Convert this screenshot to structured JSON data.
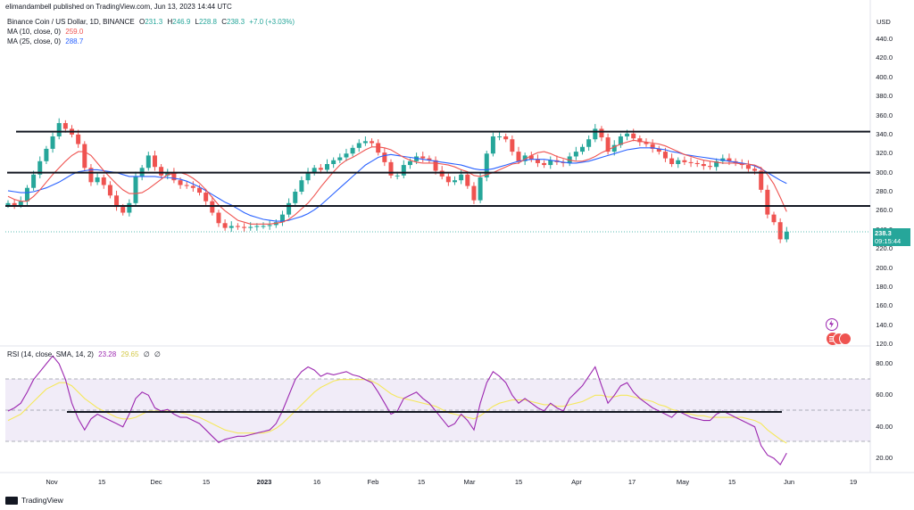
{
  "header": {
    "published_by": "elimandambell published on TradingView.com, Jun 13, 2023 14:44 UTC"
  },
  "main_legend": {
    "symbol": "Binance Coin / US Dollar, 1D, BINANCE",
    "o_label": "O",
    "o": "231.3",
    "h_label": "H",
    "h": "246.9",
    "l_label": "L",
    "l": "228.8",
    "c_label": "C",
    "c": "238.3",
    "change": "+7.0 (+3.03%)",
    "ma10_label": "MA (10, close, 0)",
    "ma10_value": "259.0",
    "ma25_label": "MA (25, close, 0)",
    "ma25_value": "288.7"
  },
  "rsi_legend": {
    "label": "RSI (14, close, SMA, 14, 2)",
    "rsi_value": "23.28",
    "sma_value": "29.65",
    "extra1": "∅",
    "extra2": "∅"
  },
  "price_axis": {
    "currency": "USD",
    "ticks": [
      "440.0",
      "420.0",
      "400.0",
      "380.0",
      "360.0",
      "340.0",
      "320.0",
      "300.0",
      "280.0",
      "260.0",
      "240.0",
      "220.0",
      "200.0",
      "180.0",
      "160.0",
      "140.0",
      "120.0"
    ],
    "last_price": "238.3",
    "countdown": "09:15:44"
  },
  "rsi_axis": {
    "ticks": [
      "80.00",
      "60.00",
      "40.00",
      "20.00"
    ]
  },
  "time_axis": {
    "labels": [
      "Nov",
      "15",
      "Dec",
      "15",
      "2023",
      "16",
      "Feb",
      "15",
      "Mar",
      "15",
      "Apr",
      "17",
      "May",
      "15",
      "Jun",
      "19"
    ]
  },
  "footer": {
    "brand": "TradingView"
  },
  "colors": {
    "up": "#26a69a",
    "down": "#ef5350",
    "ma10": "#ef5350",
    "ma25": "#2962ff",
    "rsi": "#9c27b0",
    "rsi_sma": "#f5e85c",
    "band": "#ede7f6",
    "hline": "#131722"
  },
  "chart_data": {
    "type": "candlestick",
    "y_axis_range": [
      120,
      450
    ],
    "support_resistance": [
      343,
      300,
      265
    ],
    "closes": [
      268,
      266,
      270,
      284,
      298,
      312,
      325,
      338,
      352,
      346,
      340,
      330,
      305,
      290,
      295,
      287,
      276,
      264,
      258,
      268,
      296,
      305,
      318,
      306,
      297,
      300,
      292,
      287,
      286,
      284,
      279,
      270,
      258,
      247,
      242,
      244,
      243,
      242,
      243,
      244,
      244,
      245,
      248,
      256,
      268,
      280,
      292,
      300,
      305,
      303,
      309,
      313,
      316,
      320,
      326,
      331,
      333,
      331,
      321,
      311,
      297,
      297,
      308,
      312,
      317,
      315,
      313,
      302,
      296,
      290,
      292,
      298,
      286,
      271,
      295,
      320,
      338,
      338,
      335,
      322,
      312,
      318,
      314,
      310,
      308,
      313,
      311,
      310,
      317,
      322,
      327,
      335,
      346,
      337,
      322,
      329,
      338,
      341,
      336,
      332,
      330,
      325,
      322,
      315,
      309,
      313,
      311,
      310,
      309,
      307,
      306,
      312,
      315,
      312,
      310,
      308,
      304,
      302,
      282,
      256,
      248,
      230,
      238
    ],
    "ma10": [
      275,
      272,
      270,
      270,
      275,
      282,
      290,
      298,
      305,
      312,
      318,
      322,
      322,
      318,
      310,
      302,
      295,
      288,
      282,
      278,
      278,
      279,
      283,
      288,
      293,
      298,
      299,
      300,
      298,
      294,
      289,
      282,
      274,
      266,
      260,
      255,
      250,
      248,
      246,
      246,
      246,
      246,
      247,
      248,
      251,
      256,
      262,
      268,
      276,
      285,
      293,
      301,
      308,
      313,
      316,
      320,
      324,
      327,
      327,
      326,
      324,
      320,
      316,
      313,
      311,
      310,
      310,
      310,
      309,
      308,
      306,
      303,
      301,
      297,
      296,
      298,
      300,
      303,
      306,
      309,
      310,
      314,
      318,
      321,
      322,
      320,
      317,
      315,
      313,
      312,
      312,
      314,
      317,
      321,
      324,
      327,
      330,
      332,
      334,
      333,
      332,
      331,
      330,
      328,
      325,
      322,
      319,
      317,
      315,
      313,
      312,
      311,
      310,
      310,
      310,
      309,
      309,
      308,
      305,
      298,
      288,
      274,
      259
    ],
    "ma25": [
      281,
      280,
      279,
      279,
      280,
      282,
      284,
      287,
      290,
      294,
      298,
      301,
      302,
      303,
      303,
      302,
      301,
      300,
      298,
      296,
      296,
      296,
      296,
      296,
      295,
      295,
      294,
      293,
      291,
      288,
      285,
      281,
      277,
      273,
      269,
      266,
      262,
      258,
      255,
      253,
      251,
      250,
      249,
      249,
      250,
      252,
      254,
      257,
      261,
      266,
      272,
      278,
      284,
      290,
      296,
      302,
      308,
      312,
      316,
      318,
      319,
      318,
      317,
      316,
      315,
      314,
      313,
      312,
      311,
      310,
      309,
      308,
      306,
      304,
      303,
      303,
      304,
      306,
      308,
      310,
      312,
      313,
      314,
      314,
      314,
      313,
      312,
      311,
      310,
      310,
      311,
      312,
      314,
      316,
      318,
      320,
      322,
      324,
      325,
      326,
      326,
      326,
      325,
      324,
      322,
      321,
      319,
      318,
      317,
      316,
      315,
      314,
      313,
      312,
      311,
      310,
      309,
      307,
      304,
      300,
      296,
      292,
      288.7
    ],
    "rsi": [
      50,
      52,
      55,
      62,
      70,
      75,
      80,
      85,
      80,
      70,
      55,
      45,
      38,
      45,
      48,
      46,
      44,
      42,
      40,
      48,
      58,
      62,
      60,
      52,
      50,
      51,
      48,
      46,
      46,
      44,
      42,
      38,
      34,
      30,
      32,
      33,
      34,
      34,
      35,
      36,
      37,
      38,
      42,
      50,
      60,
      70,
      75,
      78,
      76,
      72,
      74,
      73,
      74,
      75,
      73,
      72,
      70,
      68,
      62,
      55,
      48,
      50,
      58,
      60,
      62,
      58,
      55,
      50,
      45,
      40,
      42,
      48,
      44,
      38,
      55,
      68,
      75,
      72,
      68,
      60,
      55,
      58,
      55,
      52,
      50,
      55,
      52,
      50,
      58,
      62,
      66,
      72,
      78,
      66,
      55,
      60,
      66,
      68,
      62,
      58,
      55,
      52,
      50,
      48,
      46,
      50,
      48,
      46,
      45,
      44,
      44,
      48,
      50,
      48,
      46,
      44,
      42,
      40,
      28,
      22,
      20,
      16,
      23.28
    ],
    "rsi_sma": [
      44,
      46,
      48,
      52,
      56,
      60,
      64,
      66,
      68,
      68,
      66,
      62,
      58,
      55,
      52,
      50,
      48,
      46,
      45,
      45,
      46,
      48,
      50,
      50,
      50,
      50,
      50,
      49,
      48,
      47,
      46,
      44,
      42,
      40,
      38,
      37,
      36,
      36,
      36,
      36,
      36,
      37,
      39,
      42,
      46,
      50,
      54,
      58,
      62,
      65,
      67,
      69,
      70,
      70,
      70,
      70,
      70,
      69,
      67,
      64,
      61,
      59,
      58,
      57,
      56,
      55,
      54,
      53,
      51,
      49,
      48,
      47,
      46,
      45,
      47,
      50,
      53,
      55,
      56,
      57,
      57,
      57,
      56,
      55,
      54,
      54,
      53,
      53,
      54,
      55,
      56,
      58,
      60,
      60,
      59,
      59,
      60,
      60,
      59,
      58,
      57,
      56,
      54,
      53,
      51,
      50,
      49,
      48,
      47,
      47,
      46,
      46,
      46,
      46,
      46,
      46,
      45,
      44,
      42,
      38,
      35,
      32,
      29.65
    ],
    "rsi_levels": [
      70,
      50,
      30
    ]
  }
}
